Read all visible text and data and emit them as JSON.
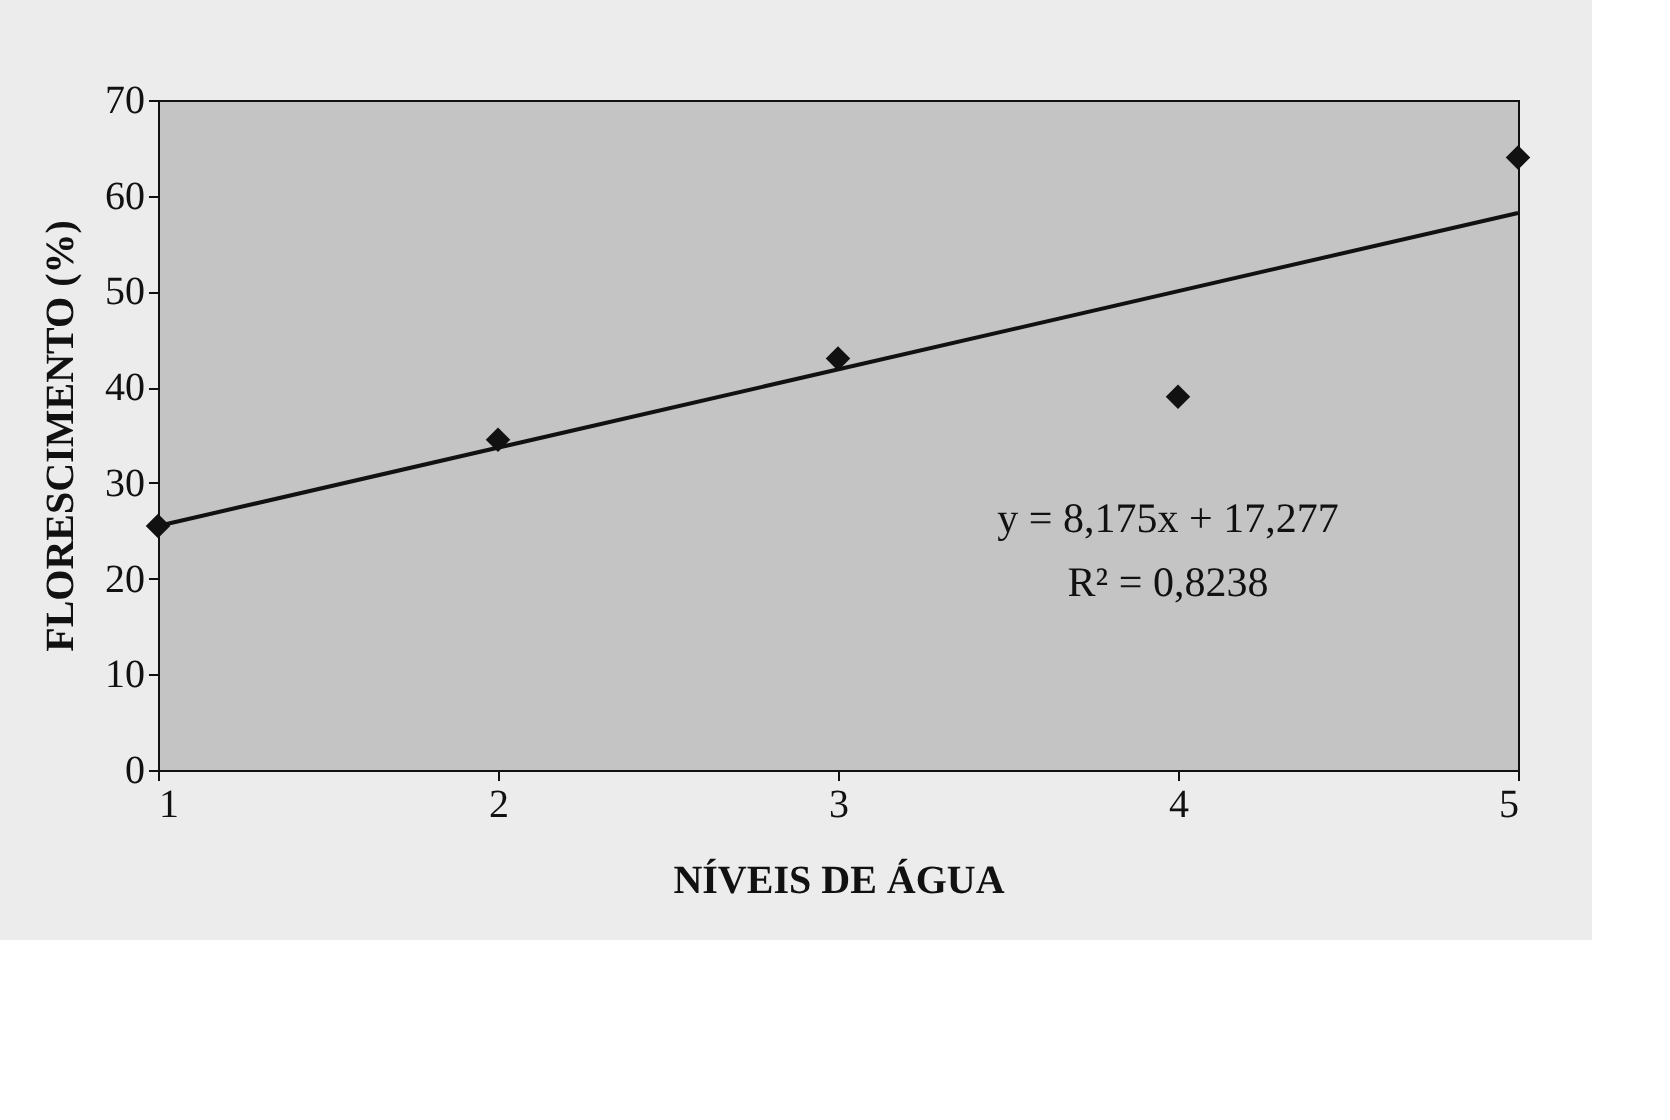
{
  "chart_data": {
    "type": "scatter",
    "xlabel": "NÍVEIS DE ÁGUA",
    "ylabel": "FLORESCIMENTO (%)",
    "x": [
      1,
      2,
      3,
      4,
      5
    ],
    "series": [
      {
        "color": "#111111",
        "marker": "diamond",
        "values": [
          25.5,
          34.5,
          43,
          39,
          64
        ]
      },
      {
        "type": "line",
        "color": "#111111",
        "line_style": "solid",
        "x": [
          1,
          5
        ],
        "values": [
          25.5,
          58.2
        ]
      }
    ],
    "xlim": [
      1,
      5
    ],
    "xticks": [
      1,
      2,
      3,
      4,
      5
    ],
    "ylim": [
      0,
      70
    ],
    "yticks": [
      0,
      10,
      20,
      30,
      40,
      50,
      60,
      70
    ],
    "grid": false,
    "annotations": [
      "y = 8,175x + 17,277",
      "R² = 0,8238"
    ]
  }
}
